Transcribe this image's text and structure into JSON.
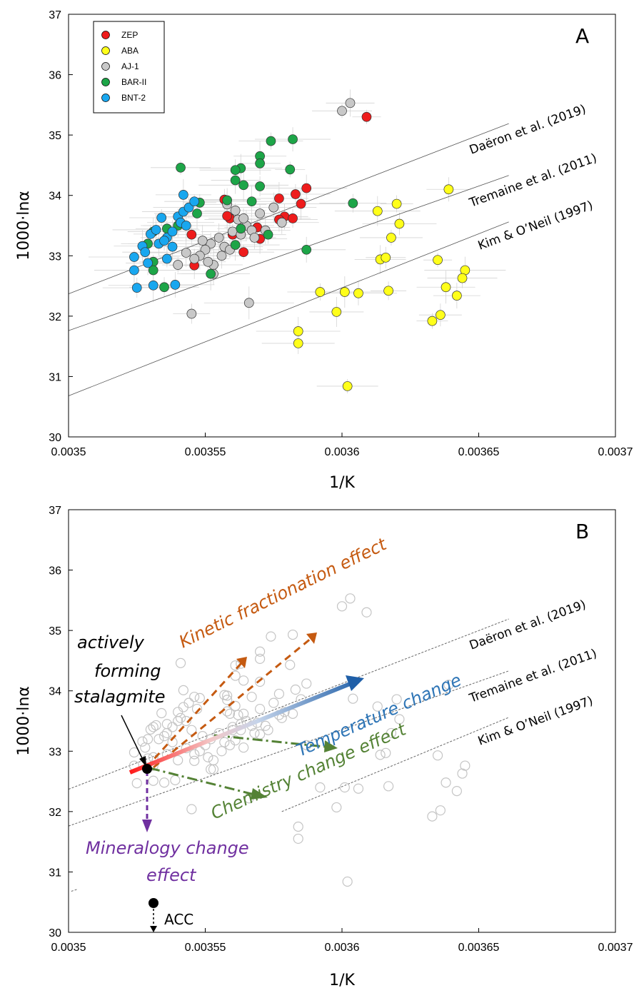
{
  "chart_data": [
    {
      "type": "scatter",
      "panel": "A",
      "xlabel": "1/K",
      "ylabel": "1000·lnα",
      "xlim": [
        0.0035,
        0.0037
      ],
      "ylim": [
        30,
        37
      ],
      "x_ticks": [
        "0.0035",
        "0.00355",
        "0.0036",
        "0.00365",
        "0.0037"
      ],
      "y_ticks": [
        "30",
        "31",
        "32",
        "33",
        "34",
        "35",
        "36",
        "37"
      ],
      "legend_position": "top-left",
      "series": [
        {
          "name": "ZEP",
          "color": "#ee1c1c",
          "points": [
            [
              0.003609,
              35.3
            ],
            [
              0.003587,
              34.12
            ],
            [
              0.003583,
              34.02
            ],
            [
              0.003577,
              33.95
            ],
            [
              0.003579,
              33.65
            ],
            [
              0.003582,
              33.62
            ],
            [
              0.003585,
              33.86
            ],
            [
              0.003577,
              33.6
            ],
            [
              0.003569,
              33.47
            ],
            [
              0.00357,
              33.28
            ],
            [
              0.003559,
              33.62
            ],
            [
              0.00356,
              33.35
            ],
            [
              0.003558,
              33.66
            ],
            [
              0.003557,
              33.93
            ],
            [
              0.003564,
              33.06
            ],
            [
              0.003546,
              32.84
            ],
            [
              0.003545,
              33.35
            ]
          ]
        },
        {
          "name": "ABA",
          "color": "#ffff1a",
          "points": [
            [
              0.003639,
              34.1
            ],
            [
              0.00362,
              33.86
            ],
            [
              0.003613,
              33.74
            ],
            [
              0.003621,
              33.53
            ],
            [
              0.003618,
              33.3
            ],
            [
              0.003614,
              32.94
            ],
            [
              0.003616,
              32.97
            ],
            [
              0.003635,
              32.93
            ],
            [
              0.003645,
              32.76
            ],
            [
              0.003644,
              32.63
            ],
            [
              0.003638,
              32.48
            ],
            [
              0.003642,
              32.34
            ],
            [
              0.003617,
              32.42
            ],
            [
              0.003601,
              32.4
            ],
            [
              0.003606,
              32.38
            ],
            [
              0.003592,
              32.4
            ],
            [
              0.003598,
              32.07
            ],
            [
              0.003636,
              32.02
            ],
            [
              0.003633,
              31.92
            ],
            [
              0.003584,
              31.75
            ],
            [
              0.003584,
              31.55
            ],
            [
              0.003602,
              30.84
            ]
          ]
        },
        {
          "name": "AJ-1",
          "color": "#c8c8c8",
          "points": [
            [
              0.0036,
              35.4
            ],
            [
              0.003603,
              35.53
            ],
            [
              0.003545,
              32.04
            ],
            [
              0.003566,
              32.22
            ],
            [
              0.003558,
              33.85
            ],
            [
              0.003562,
              33.6
            ],
            [
              0.003565,
              33.5
            ],
            [
              0.003567,
              33.42
            ],
            [
              0.00357,
              33.7
            ],
            [
              0.003575,
              33.8
            ],
            [
              0.003578,
              33.55
            ],
            [
              0.00356,
              33.4
            ],
            [
              0.003555,
              33.3
            ],
            [
              0.003552,
              33.2
            ],
            [
              0.00355,
              33.1
            ],
            [
              0.003548,
              33.0
            ],
            [
              0.003546,
              32.95
            ],
            [
              0.003553,
              32.85
            ],
            [
              0.003556,
              33.0
            ],
            [
              0.003551,
              32.9
            ],
            [
              0.003549,
              33.25
            ],
            [
              0.003557,
              33.15
            ],
            [
              0.003559,
              33.1
            ],
            [
              0.003563,
              33.35
            ],
            [
              0.003568,
              33.3
            ],
            [
              0.00354,
              32.85
            ],
            [
              0.003543,
              33.05
            ],
            [
              0.003553,
              32.7
            ],
            [
              0.003561,
              33.75
            ],
            [
              0.003572,
              33.42
            ],
            [
              0.003564,
              33.62
            ]
          ]
        },
        {
          "name": "BAR-II",
          "color": "#1da548",
          "points": [
            [
              0.003582,
              34.93
            ],
            [
              0.003574,
              34.9
            ],
            [
              0.00357,
              34.65
            ],
            [
              0.00357,
              34.53
            ],
            [
              0.003581,
              34.43
            ],
            [
              0.003563,
              34.45
            ],
            [
              0.003561,
              34.42
            ],
            [
              0.003541,
              34.46
            ],
            [
              0.003561,
              34.25
            ],
            [
              0.00357,
              34.15
            ],
            [
              0.003564,
              34.17
            ],
            [
              0.003587,
              33.1
            ],
            [
              0.003604,
              33.87
            ],
            [
              0.003567,
              33.9
            ],
            [
              0.003558,
              33.92
            ],
            [
              0.003548,
              33.88
            ],
            [
              0.003547,
              33.7
            ],
            [
              0.00354,
              33.5
            ],
            [
              0.003536,
              33.45
            ],
            [
              0.003531,
              33.4
            ],
            [
              0.003529,
              33.2
            ],
            [
              0.003531,
              32.9
            ],
            [
              0.003531,
              32.76
            ],
            [
              0.003535,
              32.48
            ],
            [
              0.003552,
              32.7
            ],
            [
              0.003563,
              33.45
            ],
            [
              0.003573,
              33.35
            ],
            [
              0.003561,
              33.18
            ]
          ]
        },
        {
          "name": "BNT-2",
          "color": "#19a7ef",
          "points": [
            [
              0.003524,
              32.98
            ],
            [
              0.003524,
              32.76
            ],
            [
              0.003525,
              32.47
            ],
            [
              0.003527,
              33.16
            ],
            [
              0.003528,
              33.06
            ],
            [
              0.00353,
              33.36
            ],
            [
              0.003532,
              33.43
            ],
            [
              0.003533,
              33.2
            ],
            [
              0.003534,
              33.63
            ],
            [
              0.003536,
              33.3
            ],
            [
              0.003538,
              33.4
            ],
            [
              0.00354,
              33.65
            ],
            [
              0.003542,
              33.73
            ],
            [
              0.003544,
              33.8
            ],
            [
              0.003546,
              33.9
            ],
            [
              0.003538,
              33.15
            ],
            [
              0.003535,
              33.25
            ],
            [
              0.003531,
              32.51
            ],
            [
              0.003539,
              32.52
            ],
            [
              0.003541,
              33.55
            ],
            [
              0.003542,
              34.01
            ],
            [
              0.003529,
              32.88
            ],
            [
              0.003536,
              32.95
            ],
            [
              0.003543,
              33.5
            ]
          ]
        }
      ],
      "reference_lines": [
        {
          "name": "Daëron et al. (2019)",
          "points": [
            [
              0.0035,
              32.37
            ],
            [
              0.003661,
              35.19
            ]
          ]
        },
        {
          "name": "Tremaine et al. (2011)",
          "points": [
            [
              0.0035,
              31.76
            ],
            [
              0.003661,
              34.33
            ]
          ]
        },
        {
          "name": "Kim & O’Neil (1997)",
          "points": [
            [
              0.0035,
              30.68
            ],
            [
              0.003661,
              33.56
            ]
          ]
        }
      ]
    },
    {
      "type": "scatter",
      "panel": "B",
      "xlabel": "1/K",
      "ylabel": "1000·lnα",
      "xlim": [
        0.0035,
        0.0037
      ],
      "ylim": [
        30,
        37
      ],
      "x_ticks": [
        "0.0035",
        "0.00355",
        "0.0036",
        "0.00365",
        "0.0037"
      ],
      "y_ticks": [
        "30",
        "31",
        "32",
        "33",
        "34",
        "35",
        "36",
        "37"
      ],
      "reference_lines_dashed": [
        {
          "name": "Daëron et al. (2019)",
          "points": [
            [
              0.0035,
              32.37
            ],
            [
              0.003661,
              35.19
            ]
          ]
        },
        {
          "name": "Tremaine et al. (2011)",
          "points": [
            [
              0.0035,
              31.76
            ],
            [
              0.003661,
              34.33
            ]
          ]
        },
        {
          "name": "Kim & O’Neil (1997)",
          "points": [
            [
              0.003501,
              30.68
            ],
            [
              0.003503,
              30.71
            ],
            [
              0.003578,
              32.0
            ],
            [
              0.003661,
              33.56
            ]
          ]
        }
      ],
      "annotations": [
        {
          "text": "Kinetic fractionation effect",
          "color": "#c55a11"
        },
        {
          "text": "Temperature change",
          "color": "#2e75b6"
        },
        {
          "text": "Chemistry change effect",
          "color": "#548235"
        },
        {
          "text": "Mineralogy change effect",
          "color": "#7030a0"
        },
        {
          "text": "actively forming stalagmite",
          "color": "#000000"
        },
        {
          "text": "ACC",
          "color": "#000000"
        }
      ],
      "stalagmite_point": [
        0.003531,
        32.7
      ],
      "acc_point": [
        0.003531,
        30.5
      ]
    }
  ]
}
